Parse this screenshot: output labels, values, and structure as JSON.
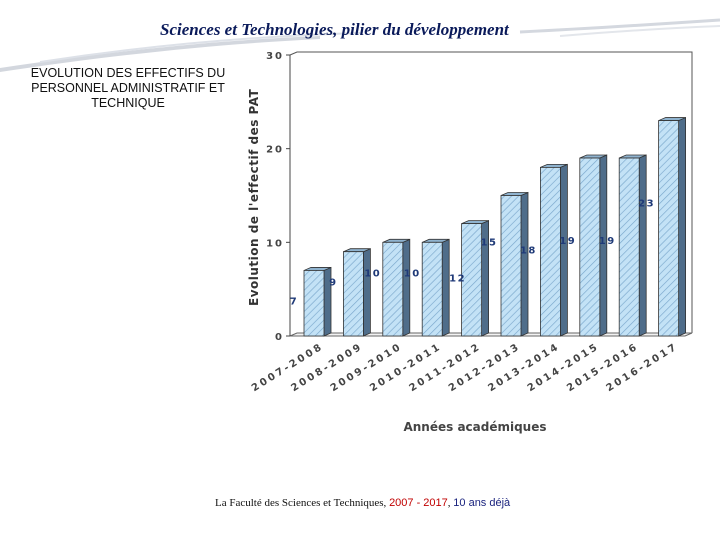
{
  "slide": {
    "title": "Sciences et Technologies, pilier du développement",
    "heading_lines": [
      "EVOLUTION DES EFFECTIFS DU",
      "PERSONNEL ADMINISTRATIF ET",
      "TECHNIQUE"
    ],
    "footer": {
      "prefix": "La Faculté des Sciences et Techniques, ",
      "years": "2007 - 2017",
      "separator": ", ",
      "duration": "10 ans déjà"
    }
  },
  "chart_data": {
    "type": "bar",
    "title": "",
    "xlabel": "Années académiques",
    "ylabel": "Evolution de l'effectif des PAT",
    "categories": [
      "2007-2008",
      "2008-2009",
      "2009-2010",
      "2010-2011",
      "2011-2012",
      "2012-2013",
      "2013-2014",
      "2014-2015",
      "2015-2016",
      "2016-2017"
    ],
    "values": [
      7,
      9,
      10,
      10,
      12,
      15,
      18,
      19,
      19,
      23
    ],
    "ylim": [
      0,
      30
    ],
    "yticks": [
      0,
      10,
      20,
      30
    ],
    "grid": false,
    "legend": "none",
    "colors": {
      "bar_front": "#b8dcf3",
      "bar_side": "#4f6d8a",
      "bar_top": "#8fb3cf",
      "label": "#1f3a78",
      "axis_text": "#444444"
    }
  }
}
